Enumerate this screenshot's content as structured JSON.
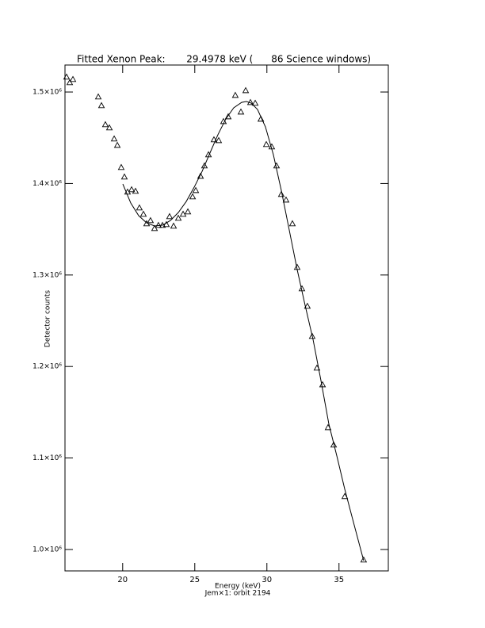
{
  "chart_data": {
    "type": "scatter",
    "title": "Fitted Xenon Peak:       29.4978 keV (      86 Science windows)",
    "x_label": "Energy (keV)",
    "subtitle": "Jem×1: orbit 2194",
    "y_label": "Detector counts",
    "xlim": [
      16,
      38.42
    ],
    "ylim": [
      976600,
      1529500
    ],
    "xticks": [
      20,
      25,
      30,
      35
    ],
    "yticks": [
      {
        "value": 1000000,
        "label": "1.0×10⁶"
      },
      {
        "value": 1100000,
        "label": "1.1×10⁶"
      },
      {
        "value": 1200000,
        "label": "1.2×10⁶"
      },
      {
        "value": 1300000,
        "label": "1.3×10⁶"
      },
      {
        "value": 1400000,
        "label": "1.4×10⁶"
      },
      {
        "value": 1500000,
        "label": "1.5×10⁶"
      }
    ],
    "series": [
      {
        "mode": "markers",
        "color": "#000000",
        "x": [
          16.11,
          16.33,
          16.55,
          18.31,
          18.53,
          18.8,
          19.08,
          19.41,
          19.63,
          19.9,
          20.12,
          20.34,
          20.62,
          20.89,
          21.16,
          21.44,
          21.66,
          21.93,
          22.21,
          22.48,
          22.76,
          23.03,
          23.25,
          23.53,
          23.86,
          24.19,
          24.52,
          24.85,
          25.07,
          25.4,
          25.67,
          25.95,
          26.33,
          26.66,
          26.99,
          27.32,
          27.81,
          28.2,
          28.53,
          28.86,
          29.19,
          29.58,
          29.96,
          30.34,
          30.67,
          31.0,
          31.33,
          31.77,
          32.1,
          32.43,
          32.81,
          33.14,
          33.47,
          33.86,
          34.24,
          34.63,
          35.4,
          36.71
        ],
        "values": [
          1516500,
          1510400,
          1513900,
          1494800,
          1485300,
          1464500,
          1461000,
          1448900,
          1441900,
          1417700,
          1407300,
          1390800,
          1393400,
          1391700,
          1373500,
          1366600,
          1356200,
          1359600,
          1351000,
          1354400,
          1354400,
          1355300,
          1364000,
          1353600,
          1362200,
          1366600,
          1369200,
          1385600,
          1392500,
          1408100,
          1419400,
          1431600,
          1448000,
          1447100,
          1467900,
          1473100,
          1496500,
          1478300,
          1501700,
          1488700,
          1487900,
          1470500,
          1442800,
          1440200,
          1419400,
          1388200,
          1382100,
          1356200,
          1308500,
          1285100,
          1266000,
          1233100,
          1198400,
          1180200,
          1133400,
          1114400,
          1058100,
          988700
        ]
      },
      {
        "mode": "line",
        "color": "#000000",
        "x": [
          20.01,
          20.56,
          21.11,
          21.66,
          22.21,
          22.76,
          23.31,
          23.86,
          24.41,
          24.96,
          25.51,
          26.05,
          26.6,
          27.15,
          27.7,
          28.25,
          28.58,
          28.91,
          29.35,
          29.9,
          30.45,
          31.0,
          31.55,
          32.1,
          32.65,
          33.2,
          33.75,
          34.3,
          34.85,
          35.4,
          35.95,
          36.71
        ],
        "values": [
          1399500,
          1378700,
          1364800,
          1357000,
          1353600,
          1354400,
          1359600,
          1368300,
          1380400,
          1396000,
          1413300,
          1433300,
          1453200,
          1470500,
          1482700,
          1488700,
          1489600,
          1487900,
          1480900,
          1461900,
          1431500,
          1392500,
          1349200,
          1305900,
          1266900,
          1229600,
          1184600,
          1136900,
          1102300,
          1065900,
          1032900,
          987900
        ]
      }
    ]
  }
}
